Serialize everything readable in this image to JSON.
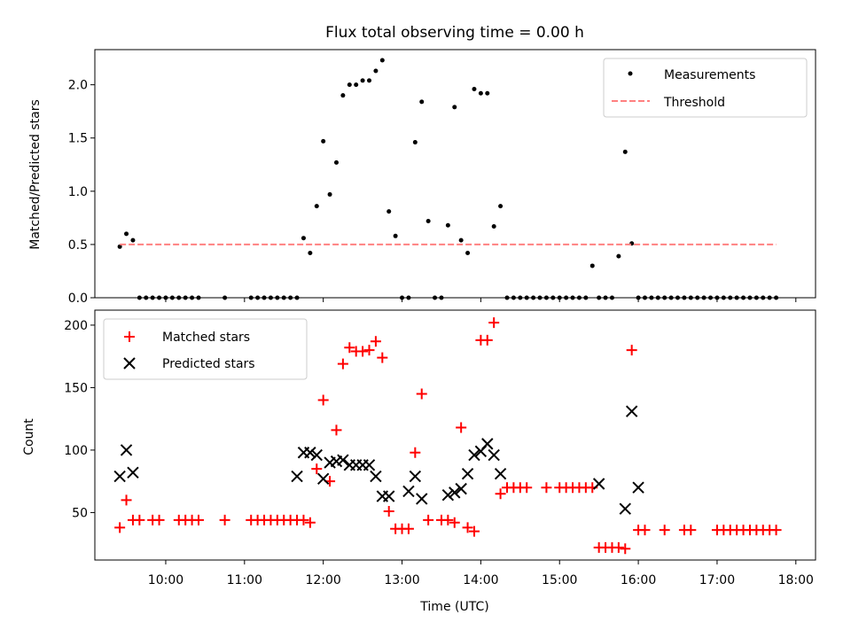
{
  "chart_data": [
    {
      "type": "scatter",
      "title": "Flux total observing time = 0.00 h",
      "xlabel": "",
      "ylabel": "Matched/Predicted stars",
      "xlim_hours": [
        9.1,
        18.25
      ],
      "ylim": [
        0,
        2.33
      ],
      "yticks": [
        0.0,
        0.5,
        1.0,
        1.5,
        2.0
      ],
      "ytick_labels": [
        "0.0",
        "0.5",
        "1.0",
        "1.5",
        "2.0"
      ],
      "legend": {
        "placement": "top-right",
        "entries": [
          "Measurements",
          "Threshold"
        ]
      },
      "series": [
        {
          "name": "Measurements",
          "marker": "dot",
          "color": "#000000",
          "x": [
            "09:25",
            "09:30",
            "09:35",
            "09:40",
            "09:45",
            "09:50",
            "09:55",
            "10:00",
            "10:05",
            "10:10",
            "10:15",
            "10:20",
            "10:25",
            "10:45",
            "11:05",
            "11:10",
            "11:15",
            "11:20",
            "11:25",
            "11:30",
            "11:35",
            "11:40",
            "11:45",
            "11:50",
            "11:55",
            "12:00",
            "12:05",
            "12:10",
            "12:15",
            "12:20",
            "12:25",
            "12:30",
            "12:35",
            "12:40",
            "12:45",
            "12:50",
            "12:55",
            "13:00",
            "13:05",
            "13:10",
            "13:15",
            "13:20",
            "13:25",
            "13:30",
            "13:35",
            "13:40",
            "13:45",
            "13:50",
            "13:55",
            "14:00",
            "14:05",
            "14:10",
            "14:15",
            "14:20",
            "14:25",
            "14:30",
            "14:35",
            "14:40",
            "14:45",
            "14:50",
            "14:55",
            "15:00",
            "15:05",
            "15:10",
            "15:15",
            "15:20",
            "15:25",
            "15:30",
            "15:35",
            "15:40",
            "15:45",
            "15:50",
            "15:55",
            "16:00",
            "16:05",
            "16:10",
            "16:15",
            "16:20",
            "16:25",
            "16:30",
            "16:35",
            "16:40",
            "16:45",
            "16:50",
            "16:55",
            "17:00",
            "17:05",
            "17:10",
            "17:15",
            "17:20",
            "17:25",
            "17:30",
            "17:35",
            "17:40",
            "17:45"
          ],
          "y": [
            0.48,
            0.6,
            0.54,
            0.0,
            0.0,
            0.0,
            0.0,
            0.0,
            0.0,
            0.0,
            0.0,
            0.0,
            0.0,
            0.0,
            0.0,
            0.0,
            0.0,
            0.0,
            0.0,
            0.0,
            0.0,
            0.0,
            0.56,
            0.42,
            0.86,
            1.47,
            0.97,
            1.27,
            1.9,
            2.0,
            2.0,
            2.04,
            2.04,
            2.13,
            2.23,
            0.81,
            0.58,
            0.0,
            0.0,
            1.46,
            1.84,
            0.72,
            0.0,
            0.0,
            0.68,
            1.79,
            0.54,
            0.42,
            1.96,
            1.92,
            1.92,
            0.67,
            0.86,
            0.0,
            0.0,
            0.0,
            0.0,
            0.0,
            0.0,
            0.0,
            0.0,
            0.0,
            0.0,
            0.0,
            0.0,
            0.0,
            0.3,
            0.0,
            0.0,
            0.0,
            0.39,
            1.37,
            0.51,
            0.0,
            0.0,
            0.0,
            0.0,
            0.0,
            0.0,
            0.0,
            0.0,
            0.0,
            0.0,
            0.0,
            0.0,
            0.0,
            0.0,
            0.0,
            0.0,
            0.0,
            0.0,
            0.0,
            0.0,
            0.0,
            0.0
          ]
        },
        {
          "name": "Threshold",
          "style": "dashed",
          "color": "#ff8080",
          "x": [
            "09:25",
            "17:45"
          ],
          "y": [
            0.5,
            0.5
          ]
        }
      ]
    },
    {
      "type": "scatter",
      "title": "",
      "xlabel": "Time (UTC)",
      "ylabel": "Count",
      "xlim_hours": [
        9.1,
        18.25
      ],
      "ylim": [
        12,
        212
      ],
      "yticks": [
        50,
        100,
        150,
        200
      ],
      "ytick_labels": [
        "50",
        "100",
        "150",
        "200"
      ],
      "xticks": [
        "10:00",
        "11:00",
        "12:00",
        "13:00",
        "14:00",
        "15:00",
        "16:00",
        "17:00",
        "18:00"
      ],
      "legend": {
        "placement": "top-left",
        "entries": [
          "Matched stars",
          "Predicted stars"
        ]
      },
      "series": [
        {
          "name": "Matched stars",
          "marker": "plus",
          "color": "#ff0000",
          "x": [
            "09:25",
            "09:30",
            "09:35",
            "09:40",
            "09:50",
            "09:55",
            "10:10",
            "10:15",
            "10:20",
            "10:25",
            "10:45",
            "11:05",
            "11:10",
            "11:15",
            "11:20",
            "11:25",
            "11:30",
            "11:35",
            "11:40",
            "11:45",
            "11:50",
            "11:55",
            "12:00",
            "12:05",
            "12:10",
            "12:15",
            "12:20",
            "12:25",
            "12:30",
            "12:35",
            "12:40",
            "12:45",
            "12:50",
            "12:55",
            "13:00",
            "13:05",
            "13:10",
            "13:15",
            "13:20",
            "13:30",
            "13:35",
            "13:40",
            "13:45",
            "13:50",
            "13:55",
            "14:00",
            "14:05",
            "14:10",
            "14:15",
            "14:20",
            "14:25",
            "14:30",
            "14:35",
            "14:50",
            "15:00",
            "15:05",
            "15:10",
            "15:15",
            "15:20",
            "15:25",
            "15:30",
            "15:35",
            "15:40",
            "15:45",
            "15:50",
            "15:55",
            "16:00",
            "16:05",
            "16:20",
            "16:35",
            "16:40",
            "17:00",
            "17:05",
            "17:10",
            "17:15",
            "17:20",
            "17:25",
            "17:30",
            "17:35",
            "17:40",
            "17:45"
          ],
          "y": [
            38,
            60,
            44,
            44,
            44,
            44,
            44,
            44,
            44,
            44,
            44,
            44,
            44,
            44,
            44,
            44,
            44,
            44,
            44,
            44,
            42,
            85,
            140,
            75,
            116,
            169,
            182,
            179,
            179,
            180,
            187,
            174,
            51,
            37,
            37,
            37,
            98,
            145,
            44,
            44,
            44,
            42,
            118,
            38,
            35,
            188,
            188,
            202,
            65,
            70,
            70,
            70,
            70,
            70,
            70,
            70,
            70,
            70,
            70,
            70,
            22,
            22,
            22,
            22,
            21,
            180,
            36,
            36,
            36,
            36,
            36,
            36,
            36,
            36,
            36,
            36,
            36,
            36,
            36,
            36,
            36
          ]
        },
        {
          "name": "Predicted stars",
          "marker": "x",
          "color": "#000000",
          "x": [
            "09:25",
            "09:30",
            "09:35",
            "11:40",
            "11:45",
            "11:50",
            "11:55",
            "12:00",
            "12:05",
            "12:10",
            "12:15",
            "12:20",
            "12:25",
            "12:30",
            "12:35",
            "12:40",
            "12:45",
            "12:50",
            "13:05",
            "13:10",
            "13:15",
            "13:35",
            "13:40",
            "13:45",
            "13:50",
            "13:55",
            "14:00",
            "14:05",
            "14:10",
            "14:15",
            "15:30",
            "15:50",
            "15:55",
            "16:00"
          ],
          "y": [
            79,
            100,
            82,
            79,
            98,
            98,
            96,
            77,
            90,
            91,
            92,
            88,
            88,
            88,
            88,
            79,
            63,
            63,
            67,
            79,
            61,
            64,
            66,
            69,
            81,
            96,
            99,
            105,
            96,
            81,
            73,
            53,
            131,
            70
          ]
        }
      ]
    }
  ]
}
